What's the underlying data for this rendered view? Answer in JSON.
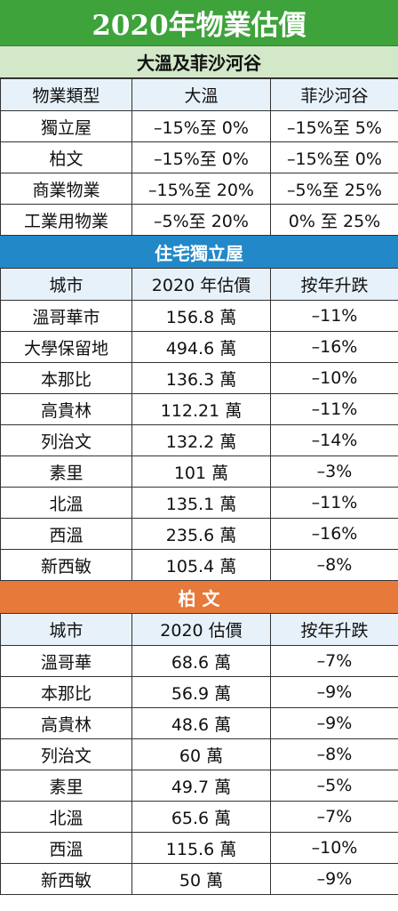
{
  "title": "2020年物業估價",
  "section1": {
    "title": "大溫及菲沙河谷",
    "headers": [
      "物業類型",
      "大溫",
      "菲沙河谷"
    ],
    "rows": [
      [
        "獨立屋",
        "–15%至 0%",
        "–15%至 5%"
      ],
      [
        "柏文",
        "–15%至 0%",
        "–15%至 0%"
      ],
      [
        "商業物業",
        "–15%至 20%",
        "–5%至 25%"
      ],
      [
        "工業用物業",
        "–5%至 20%",
        "0% 至 25%"
      ]
    ]
  },
  "section2": {
    "title": "住宅獨立屋",
    "headers": [
      "城市",
      "2020 年估價",
      "按年升跌"
    ],
    "rows": [
      [
        "溫哥華市",
        "156.8 萬",
        "–11%"
      ],
      [
        "大學保留地",
        "494.6 萬",
        "–16%"
      ],
      [
        "本那比",
        "136.3 萬",
        "–10%"
      ],
      [
        "高貴林",
        "112.21 萬",
        "–11%"
      ],
      [
        "列治文",
        "132.2 萬",
        "–14%"
      ],
      [
        "素里",
        "101 萬",
        "–3%"
      ],
      [
        "北溫",
        "135.1 萬",
        "–11%"
      ],
      [
        "西溫",
        "235.6 萬",
        "–16%"
      ],
      [
        "新西敏",
        "105.4 萬",
        "–8%"
      ]
    ]
  },
  "section3": {
    "title": "柏 文",
    "headers": [
      "城市",
      "2020 估價",
      "按年升跌"
    ],
    "rows": [
      [
        "溫哥華",
        "68.6 萬",
        "–7%"
      ],
      [
        "本那比",
        "56.9 萬",
        "–9%"
      ],
      [
        "高貴林",
        "48.6 萬",
        "–9%"
      ],
      [
        "列治文",
        "60 萬",
        "–8%"
      ],
      [
        "素里",
        "49.7 萬",
        "–5%"
      ],
      [
        "北溫",
        "65.6 萬",
        "–7%"
      ],
      [
        "西溫",
        "115.6 萬",
        "–10%"
      ],
      [
        "新西敏",
        "50 萬",
        "–9%"
      ]
    ]
  },
  "colors": {
    "title_bg": "#3da33a",
    "section1_bg": "#d3e8c8",
    "section2_bg": "#2288c8",
    "section3_bg": "#e7793a",
    "header_row_bg": "#e7f1f9"
  }
}
